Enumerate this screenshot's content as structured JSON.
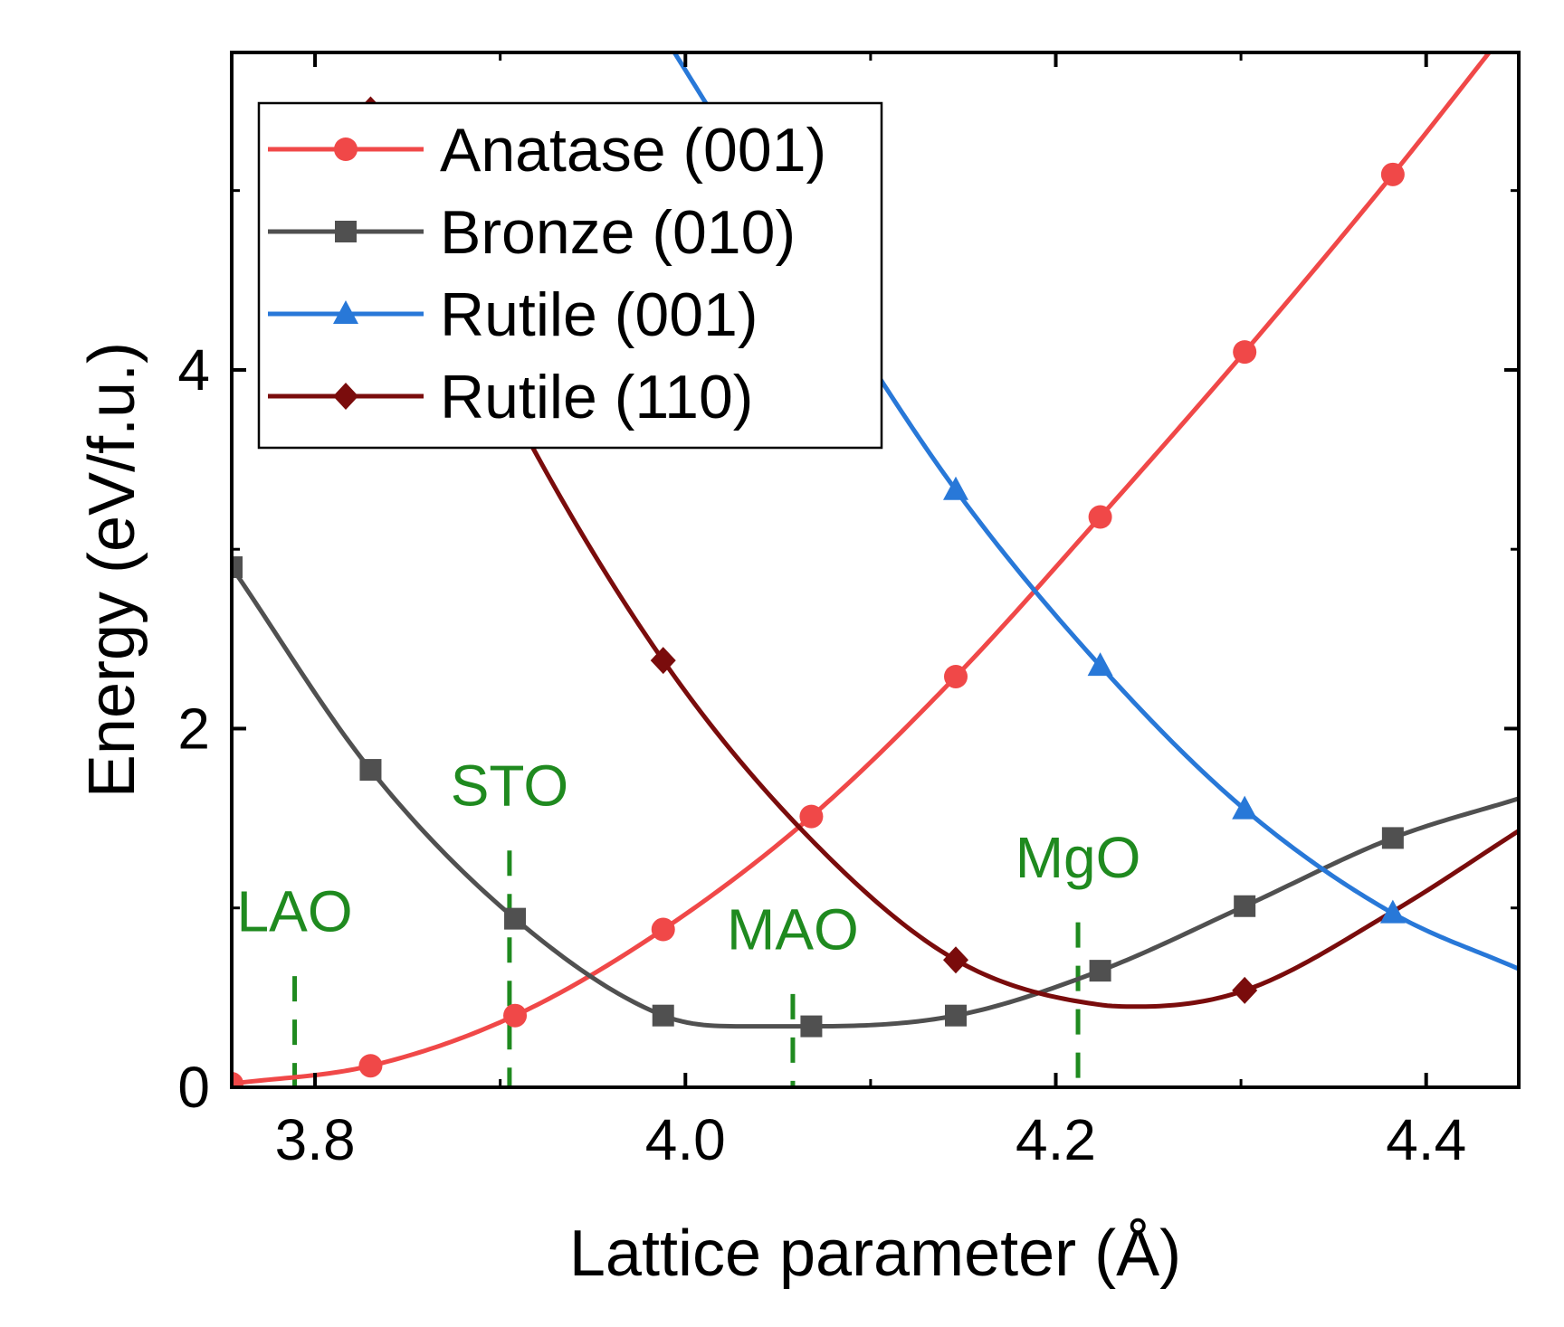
{
  "chart_data": {
    "type": "line",
    "xlabel": "Lattice parameter (Å)",
    "ylabel": "Energy (eV/f.u.)",
    "xlim": [
      3.755,
      4.45
    ],
    "ylim": [
      0,
      5.77
    ],
    "xticks": [
      3.8,
      4.0,
      4.2,
      4.4
    ],
    "xtick_labels": [
      "3.8",
      "4.0",
      "4.2",
      "4.4"
    ],
    "yticks": [
      0,
      2,
      4
    ],
    "ytick_labels": [
      "0",
      "2",
      "4"
    ],
    "grid": false,
    "legend_position": "top-left",
    "series": [
      {
        "name": "Anatase (001)",
        "color": "#f04848",
        "marker": "circle",
        "x": [
          3.755,
          3.83,
          3.908,
          3.988,
          4.068,
          4.146,
          4.224,
          4.302,
          4.382,
          4.45
        ],
        "y": [
          0.02,
          0.12,
          0.4,
          0.88,
          1.51,
          2.29,
          3.18,
          4.1,
          5.09,
          5.98
        ],
        "marker_x": [
          3.755,
          3.83,
          3.908,
          3.988,
          4.068,
          4.146,
          4.224,
          4.302,
          4.382
        ]
      },
      {
        "name": "Bronze (010)",
        "color": "#505050",
        "marker": "square",
        "x": [
          3.755,
          3.83,
          3.908,
          3.988,
          4.03,
          4.068,
          4.146,
          4.224,
          4.302,
          4.382,
          4.45
        ],
        "y": [
          2.9,
          1.77,
          0.94,
          0.4,
          0.34,
          0.34,
          0.4,
          0.65,
          1.01,
          1.39,
          1.61
        ],
        "marker_x": [
          3.755,
          3.83,
          3.908,
          3.988,
          4.068,
          4.146,
          4.224,
          4.302,
          4.382
        ]
      },
      {
        "name": "Rutile (001)",
        "color": "#2878d8",
        "marker": "triangle",
        "x": [
          3.988,
          4.068,
          4.146,
          4.224,
          4.302,
          4.382,
          4.45
        ],
        "y": [
          5.87,
          4.55,
          3.33,
          2.35,
          1.55,
          0.97,
          0.66
        ],
        "marker_x": [
          4.068,
          4.146,
          4.224,
          4.302,
          4.382
        ]
      },
      {
        "name": "Rutile (110)",
        "color": "#7a0c0c",
        "marker": "diamond",
        "x": [
          3.83,
          3.908,
          3.988,
          4.068,
          4.146,
          4.224,
          4.245,
          4.302,
          4.382,
          4.45
        ],
        "y": [
          5.45,
          3.75,
          2.38,
          1.38,
          0.71,
          0.46,
          0.45,
          0.54,
          0.98,
          1.43
        ],
        "marker_x": [
          3.83,
          3.988,
          4.146,
          4.302
        ]
      }
    ],
    "annotations": [
      {
        "label": "LAO",
        "x": 3.789,
        "y_top": 0.62,
        "label_y": 0.87,
        "color": "#1f8a1f"
      },
      {
        "label": "STO",
        "x": 3.905,
        "y_top": 1.32,
        "label_y": 1.57,
        "color": "#1f8a1f"
      },
      {
        "label": "MAO",
        "x": 4.058,
        "y_top": 0.52,
        "label_y": 0.77,
        "color": "#1f8a1f"
      },
      {
        "label": "MgO",
        "x": 4.212,
        "y_top": 0.92,
        "label_y": 1.17,
        "color": "#1f8a1f"
      }
    ]
  }
}
